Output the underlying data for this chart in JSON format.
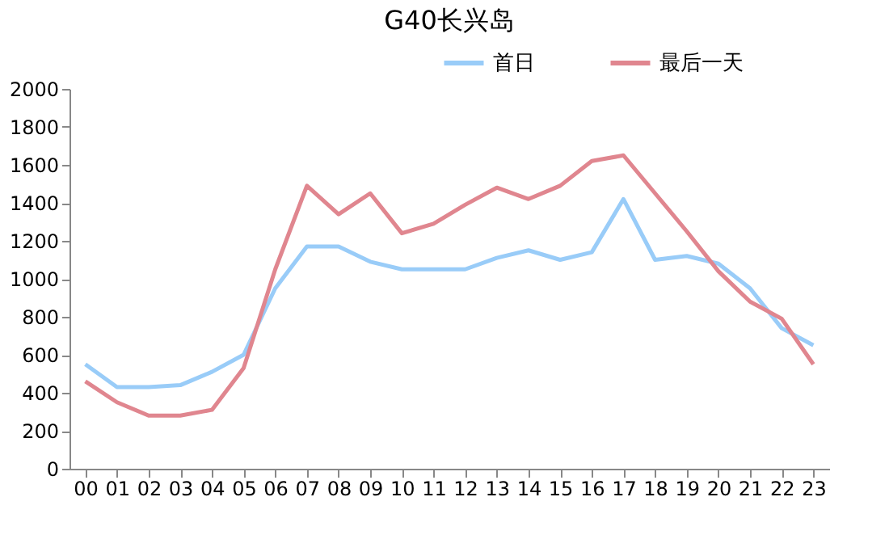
{
  "chart_data": {
    "type": "line",
    "title": "G40长兴岛",
    "categories": [
      "00",
      "01",
      "02",
      "03",
      "04",
      "05",
      "06",
      "07",
      "08",
      "09",
      "10",
      "11",
      "12",
      "13",
      "14",
      "15",
      "16",
      "17",
      "18",
      "19",
      "20",
      "21",
      "22",
      "23"
    ],
    "series": [
      {
        "name": "首日",
        "color": "#99ccf8",
        "values": [
          550,
          430,
          430,
          440,
          510,
          600,
          950,
          1170,
          1170,
          1090,
          1050,
          1050,
          1050,
          1110,
          1150,
          1100,
          1140,
          1420,
          1100,
          1120,
          1080,
          950,
          740,
          650
        ]
      },
      {
        "name": "最后一天",
        "color": "#e0868f",
        "values": [
          460,
          350,
          280,
          280,
          310,
          530,
          1050,
          1490,
          1340,
          1450,
          1240,
          1290,
          1390,
          1480,
          1420,
          1490,
          1620,
          1650,
          1450,
          1250,
          1040,
          880,
          790,
          550
        ]
      }
    ],
    "ylim": [
      0,
      2000
    ],
    "yticks": [
      0,
      200,
      400,
      600,
      800,
      1000,
      1200,
      1400,
      1600,
      1800,
      2000
    ],
    "grid": false,
    "legend": "top right",
    "marker": "none",
    "line_style": "solid"
  }
}
